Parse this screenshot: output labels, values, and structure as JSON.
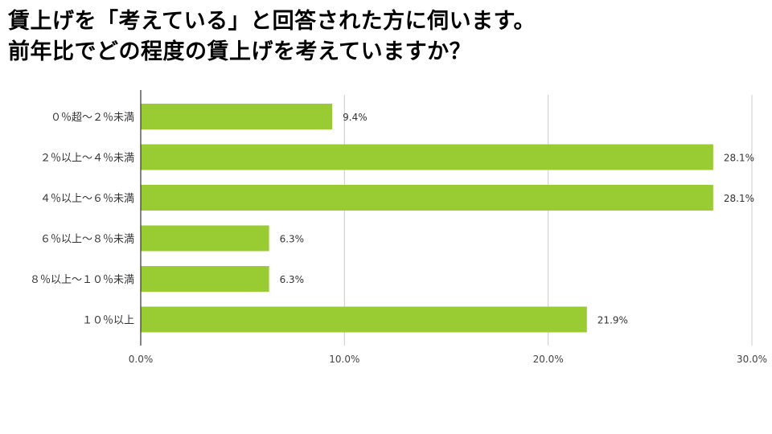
{
  "title": {
    "line1": "賃上げを「考えている」と回答された方に伺います。",
    "line2": "前年比でどの程度の賃上げを考えていますか？"
  },
  "chart_data": {
    "type": "bar",
    "orientation": "horizontal",
    "categories": [
      "０％超～２％未満",
      "２％以上～４％未満",
      "４％以上～６％未満",
      "６％以上～８％未満",
      "８％以上～１０％未満",
      "１０％以上"
    ],
    "values": [
      9.4,
      28.1,
      28.1,
      6.3,
      6.3,
      21.9
    ],
    "value_labels": [
      "9.4%",
      "28.1%",
      "28.1%",
      "6.3%",
      "6.3%",
      "21.9%"
    ],
    "xlim": [
      0,
      30
    ],
    "x_ticks": [
      0,
      10,
      20,
      30
    ],
    "x_tick_labels": [
      "0.0%",
      "10.0%",
      "20.0%",
      "30.0%"
    ],
    "grid": true,
    "bar_color": "#99cc33",
    "grid_color": "#cccccc",
    "axis_color": "#333333"
  }
}
